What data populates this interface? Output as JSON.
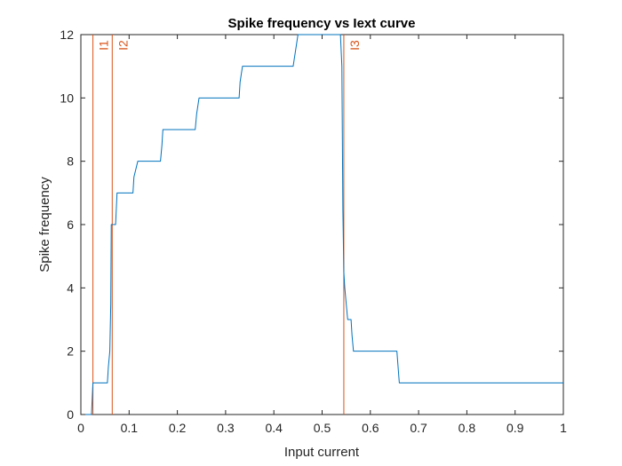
{
  "chart_data": {
    "type": "line",
    "title": "Spike frequency vs Iext curve",
    "xlabel": "Input current",
    "ylabel": "Spike frequency",
    "xlim": [
      0,
      1
    ],
    "ylim": [
      0,
      12
    ],
    "xticks": [
      0,
      0.1,
      0.2,
      0.3,
      0.4,
      0.5,
      0.6,
      0.7,
      0.8,
      0.9,
      1
    ],
    "xtick_labels": [
      "0",
      "0.1",
      "0.2",
      "0.3",
      "0.4",
      "0.5",
      "0.6",
      "0.7",
      "0.8",
      "0.9",
      "1"
    ],
    "yticks": [
      0,
      2,
      4,
      6,
      8,
      10,
      12
    ],
    "ytick_labels": [
      "0",
      "2",
      "4",
      "6",
      "8",
      "10",
      "12"
    ],
    "grid": false,
    "series": [
      {
        "color": "#0072BD",
        "x": [
          0,
          0.022,
          0.025,
          0.055,
          0.057,
          0.06,
          0.062,
          0.063,
          0.065,
          0.072,
          0.075,
          0.108,
          0.11,
          0.118,
          0.165,
          0.168,
          0.17,
          0.237,
          0.24,
          0.245,
          0.328,
          0.33,
          0.335,
          0.44,
          0.45,
          0.538,
          0.541,
          0.543,
          0.545,
          0.547,
          0.55,
          0.553,
          0.555,
          0.56,
          0.562,
          0.565,
          0.655,
          0.66,
          1.0
        ],
        "y": [
          0,
          0,
          1,
          1,
          1.5,
          2,
          3.5,
          6,
          6,
          6,
          7,
          7,
          7.5,
          8,
          8,
          8.5,
          9,
          9,
          9.5,
          10,
          10,
          10.5,
          11,
          11,
          12,
          12,
          11,
          6.5,
          4.5,
          4,
          3.5,
          3,
          3,
          3,
          2.5,
          2,
          2,
          1,
          1
        ]
      }
    ],
    "markers": [
      {
        "label": "I1",
        "x": 0.025,
        "color": "#D95319"
      },
      {
        "label": "I2",
        "x": 0.065,
        "color": "#D95319"
      },
      {
        "label": "I3",
        "x": 0.545,
        "color": "#D95319"
      }
    ]
  }
}
